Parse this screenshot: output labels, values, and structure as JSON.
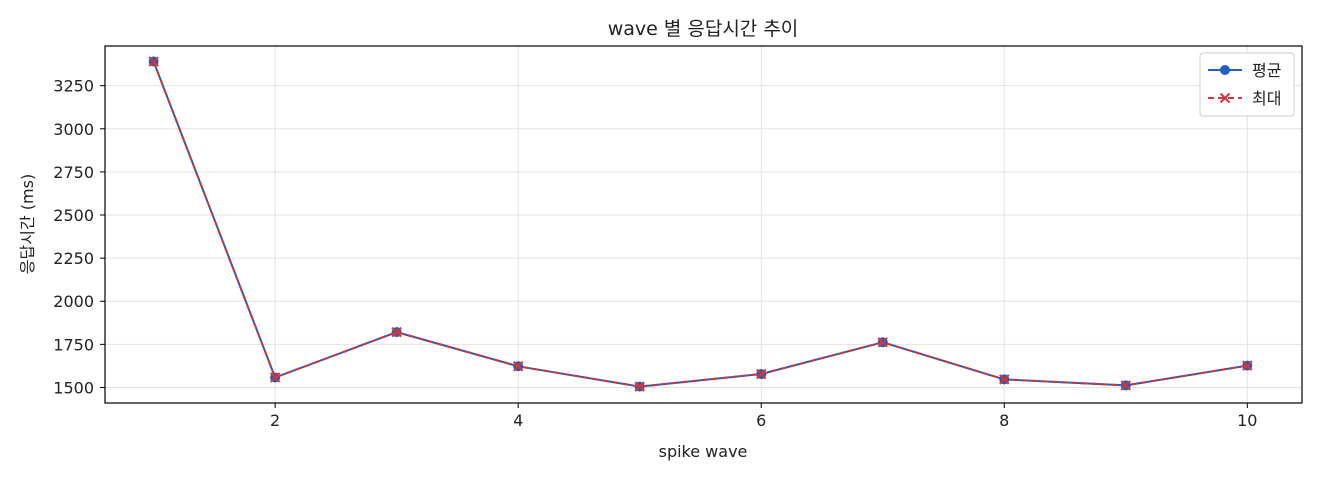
{
  "chart_data": {
    "type": "line",
    "title": "wave 별 응답시간 추이",
    "xlabel": "spike wave",
    "ylabel": "응답시간 (ms)",
    "xlim": [
      0.6,
      10.45
    ],
    "ylim": [
      1410,
      3480
    ],
    "xticks": [
      2,
      4,
      6,
      8,
      10
    ],
    "yticks": [
      1500,
      1750,
      2000,
      2250,
      2500,
      2750,
      3000,
      3250
    ],
    "grid": true,
    "legend_position": "top-right",
    "x": [
      1,
      2,
      3,
      4,
      5,
      6,
      7,
      8,
      9,
      10
    ],
    "series": [
      {
        "name": "평균",
        "values": [
          3390,
          1558,
          1821,
          1623,
          1505,
          1578,
          1762,
          1547,
          1512,
          1627
        ],
        "color": "#1f5fbf",
        "marker": "circle",
        "linestyle": "solid"
      },
      {
        "name": "최대",
        "values": [
          3390,
          1558,
          1821,
          1623,
          1505,
          1578,
          1762,
          1547,
          1512,
          1627
        ],
        "color": "#d0363a",
        "marker": "x",
        "linestyle": "dashed"
      }
    ]
  }
}
